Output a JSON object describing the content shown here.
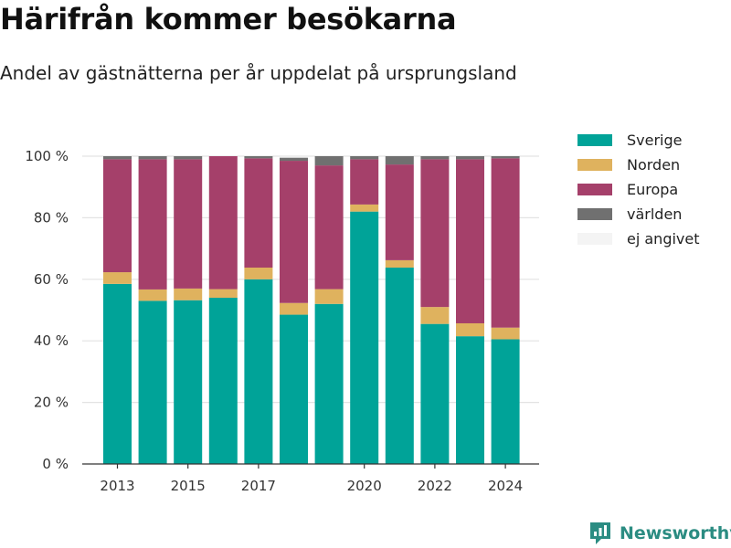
{
  "header": {
    "title": "Härifrån kommer besökarna",
    "subtitle": "Andel av gästnätterna per år uppdelat på ursprungsland"
  },
  "chart_data": {
    "type": "bar",
    "stacked": true,
    "categories": [
      "2013",
      "2014",
      "2015",
      "2016",
      "2017",
      "2018",
      "2019",
      "2020",
      "2021",
      "2022",
      "2023",
      "2024"
    ],
    "x_tick_labels": [
      "2013",
      "",
      "2015",
      "",
      "2017",
      "",
      "",
      "2020",
      "",
      "2022",
      "",
      "2024"
    ],
    "y_ticks": [
      0,
      20,
      40,
      60,
      80,
      100
    ],
    "y_tick_labels": [
      "0 %",
      "20 %",
      "40 %",
      "60 %",
      "80 %",
      "100 %"
    ],
    "ylim": [
      0,
      100
    ],
    "grid": true,
    "legend_position": "right",
    "series": [
      {
        "name": "Sverige",
        "color": "#00a398",
        "values": [
          58.5,
          53.0,
          53.2,
          54.0,
          60.0,
          48.5,
          52.0,
          82.0,
          63.8,
          45.5,
          41.5,
          40.5
        ]
      },
      {
        "name": "Norden",
        "color": "#dfb25e",
        "values": [
          3.8,
          3.7,
          3.8,
          2.8,
          3.8,
          3.8,
          4.8,
          2.3,
          2.4,
          5.5,
          4.2,
          3.8
        ]
      },
      {
        "name": "Europa",
        "color": "#a5406a",
        "values": [
          36.7,
          42.3,
          42.0,
          43.2,
          35.5,
          46.2,
          40.2,
          14.7,
          31.1,
          48.0,
          53.3,
          55.0
        ]
      },
      {
        "name": "världen",
        "color": "#707070",
        "values": [
          1.0,
          1.0,
          1.0,
          0.0,
          0.7,
          1.0,
          3.0,
          1.0,
          2.7,
          1.0,
          1.0,
          0.7
        ]
      },
      {
        "name": "ej angivet",
        "color": "#f4f4f4",
        "values": [
          0,
          0,
          0,
          0,
          0,
          0,
          0,
          0,
          0,
          0,
          0,
          0
        ]
      }
    ]
  },
  "footer": {
    "brand": "Newsworthy"
  },
  "icons": {
    "logo": "newsworthy-logo-icon"
  }
}
